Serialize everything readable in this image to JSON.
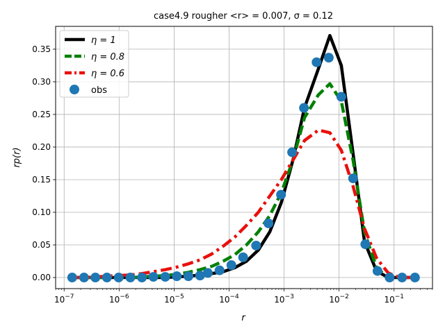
{
  "chart_data": {
    "type": "line",
    "title": "case4.9 rougher",
    "title_math": "<r> = 0.007, σ = 0.12",
    "xlabel": "r",
    "ylabel": "rp(r)",
    "xscale": "log",
    "xlim": [
      7e-08,
      0.5
    ],
    "ylim": [
      -0.017,
      0.385
    ],
    "grid": true,
    "legend_position": "upper left",
    "x_ticks": [
      {
        "value": 1e-07,
        "base": "10",
        "exp": "−7"
      },
      {
        "value": 1e-06,
        "base": "10",
        "exp": "−6"
      },
      {
        "value": 1e-05,
        "base": "10",
        "exp": "−5"
      },
      {
        "value": 0.0001,
        "base": "10",
        "exp": "−4"
      },
      {
        "value": 0.001,
        "base": "10",
        "exp": "−3"
      },
      {
        "value": 0.01,
        "base": "10",
        "exp": "−2"
      },
      {
        "value": 0.1,
        "base": "10",
        "exp": "−1"
      }
    ],
    "y_ticks": [
      {
        "value": 0.0,
        "label": "0.00"
      },
      {
        "value": 0.05,
        "label": "0.05"
      },
      {
        "value": 0.1,
        "label": "0.10"
      },
      {
        "value": 0.15,
        "label": "0.15"
      },
      {
        "value": 0.2,
        "label": "0.20"
      },
      {
        "value": 0.25,
        "label": "0.25"
      },
      {
        "value": 0.3,
        "label": "0.30"
      },
      {
        "value": 0.35,
        "label": "0.35"
      }
    ],
    "series": [
      {
        "name": "η = 1",
        "color": "#000000",
        "style": "solid",
        "x": [
          1.4e-07,
          2.3e-07,
          3.7e-07,
          6e-07,
          9.8e-07,
          1.6e-06,
          2.6e-06,
          4.2e-06,
          6.9e-06,
          1.12e-05,
          1.82e-05,
          2.96e-05,
          4.8e-05,
          7.8e-05,
          0.000127,
          0.000207,
          0.00034,
          0.00055,
          0.00089,
          0.00145,
          0.00235,
          0.0042,
          0.0068,
          0.011,
          0.018,
          0.029,
          0.048,
          0.078,
          0.127,
          0.21
        ],
        "y": [
          0.0,
          0.0,
          0.0,
          0.0,
          0.0,
          0.0,
          0.0,
          0.0,
          0.0,
          0.001,
          0.002,
          0.004,
          0.006,
          0.009,
          0.015,
          0.025,
          0.042,
          0.07,
          0.115,
          0.18,
          0.26,
          0.32,
          0.371,
          0.325,
          0.19,
          0.055,
          0.01,
          0.0,
          0.0,
          0.0
        ]
      },
      {
        "name": "η = 0.8",
        "color": "#008000",
        "style": "dashed",
        "x": [
          1.4e-07,
          2.3e-07,
          3.7e-07,
          6e-07,
          9.8e-07,
          1.6e-06,
          2.6e-06,
          4.2e-06,
          6.9e-06,
          1.12e-05,
          1.82e-05,
          2.96e-05,
          4.8e-05,
          7.8e-05,
          0.000127,
          0.000207,
          0.00034,
          0.00055,
          0.00089,
          0.00145,
          0.00235,
          0.0042,
          0.0068,
          0.011,
          0.018,
          0.029,
          0.048,
          0.078,
          0.127,
          0.21
        ],
        "y": [
          0.0,
          0.0,
          0.0,
          0.0,
          0.0,
          0.0,
          0.001,
          0.002,
          0.003,
          0.005,
          0.008,
          0.012,
          0.017,
          0.025,
          0.035,
          0.05,
          0.07,
          0.095,
          0.13,
          0.18,
          0.245,
          0.28,
          0.297,
          0.27,
          0.18,
          0.07,
          0.015,
          0.0,
          0.0,
          0.0
        ]
      },
      {
        "name": "η = 0.6",
        "color": "#e8100c",
        "style": "dashdot",
        "x": [
          1.4e-07,
          2.3e-07,
          3.7e-07,
          6e-07,
          9.8e-07,
          1.6e-06,
          2.6e-06,
          4.2e-06,
          6.9e-06,
          1.12e-05,
          1.82e-05,
          2.96e-05,
          4.8e-05,
          7.8e-05,
          0.000127,
          0.000207,
          0.00034,
          0.00055,
          0.00089,
          0.00145,
          0.00235,
          0.0042,
          0.0068,
          0.011,
          0.018,
          0.029,
          0.048,
          0.078,
          0.127,
          0.21
        ],
        "y": [
          0.0,
          0.0,
          0.001,
          0.002,
          0.003,
          0.004,
          0.006,
          0.009,
          0.012,
          0.016,
          0.021,
          0.027,
          0.036,
          0.048,
          0.062,
          0.08,
          0.1,
          0.125,
          0.15,
          0.18,
          0.21,
          0.226,
          0.222,
          0.195,
          0.14,
          0.075,
          0.03,
          0.007,
          0.0,
          0.0
        ]
      },
      {
        "name": "obs",
        "color": "#1f77b4",
        "style": "markers",
        "x": [
          1.4e-07,
          2.3e-07,
          3.7e-07,
          6e-07,
          9.8e-07,
          1.6e-06,
          2.6e-06,
          4.2e-06,
          6.9e-06,
          1.12e-05,
          1.82e-05,
          2.96e-05,
          4.1e-05,
          6.7e-05,
          0.00011,
          0.00018,
          0.00031,
          0.00052,
          0.00088,
          0.0014,
          0.0023,
          0.0039,
          0.0065,
          0.011,
          0.018,
          0.03,
          0.05,
          0.083,
          0.14,
          0.24
        ],
        "y": [
          0.0,
          0.0,
          0.0,
          0.0,
          0.0,
          0.0,
          0.0,
          0.001,
          0.001,
          0.002,
          0.002,
          0.003,
          0.007,
          0.011,
          0.019,
          0.031,
          0.049,
          0.083,
          0.127,
          0.192,
          0.26,
          0.33,
          0.337,
          0.277,
          0.152,
          0.051,
          0.01,
          0.0,
          0.0,
          0.0
        ]
      }
    ]
  }
}
